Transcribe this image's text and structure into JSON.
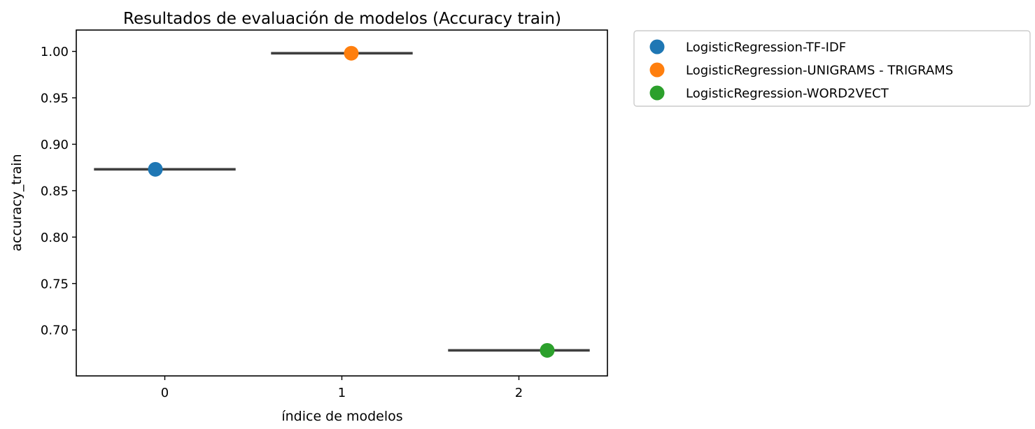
{
  "chart_data": {
    "type": "scatter",
    "title": "Resultados de evaluación de modelos (Accuracy train)",
    "xlabel": "índice de modelos",
    "ylabel": "accuracy_train",
    "xlim": [
      -0.5,
      2.5
    ],
    "ylim": [
      0.6505,
      1.023
    ],
    "xticks": [
      0,
      1,
      2
    ],
    "xtick_labels": [
      "0",
      "1",
      "2"
    ],
    "yticks": [
      0.7,
      0.75,
      0.8,
      0.85,
      0.9,
      0.95,
      1.0
    ],
    "ytick_labels": [
      "0.70",
      "0.75",
      "0.80",
      "0.85",
      "0.90",
      "0.95",
      "1.00"
    ],
    "grid": false,
    "legend_position": "outside-top-right",
    "series": [
      {
        "name": "LogisticRegression-TF-IDF",
        "color": "#1f77b4",
        "x": 0,
        "y": 0.873,
        "dodge": -0.0533,
        "range": [
          -0.4,
          0.4
        ]
      },
      {
        "name": "LogisticRegression-UNIGRAMS - TRIGRAMS",
        "color": "#ff7f0e",
        "x": 1,
        "y": 0.998,
        "dodge": 0.0533,
        "range": [
          0.6,
          1.4
        ]
      },
      {
        "name": "LogisticRegression-WORD2VECT",
        "color": "#2ca02c",
        "x": 2,
        "y": 0.678,
        "dodge": 0.16,
        "range": [
          1.6,
          2.4
        ]
      }
    ]
  }
}
